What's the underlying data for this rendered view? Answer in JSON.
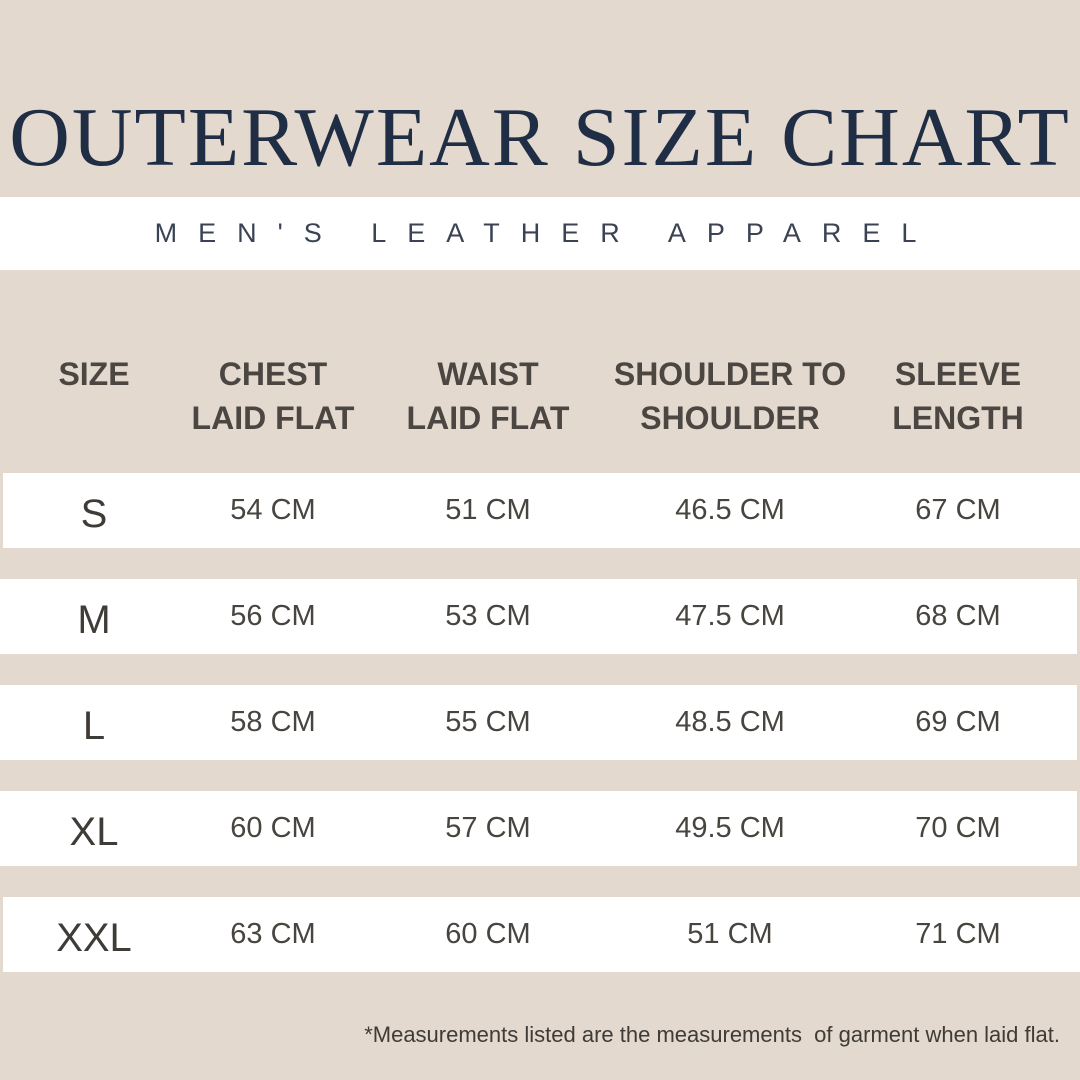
{
  "title": "OUTERWEAR SIZE CHART",
  "subtitle": "MEN'S LEATHER APPAREL",
  "headers": [
    [
      "SIZE",
      ""
    ],
    [
      "CHEST",
      "LAID FLAT"
    ],
    [
      "WAIST",
      "LAID FLAT"
    ],
    [
      "SHOULDER TO",
      "SHOULDER"
    ],
    [
      "SLEEVE",
      "LENGTH"
    ]
  ],
  "rows": [
    [
      "S",
      "54 CM",
      "51 CM",
      "46.5 CM",
      "67 CM"
    ],
    [
      "M",
      "56 CM",
      "53 CM",
      "47.5 CM",
      "68 CM"
    ],
    [
      "L",
      "58 CM",
      "55 CM",
      "48.5 CM",
      "69 CM"
    ],
    [
      "XL",
      "60 CM",
      "57 CM",
      "49.5 CM",
      "70 CM"
    ],
    [
      "XXL",
      "63 CM",
      "60 CM",
      "51 CM",
      "71 CM"
    ]
  ],
  "footnote": "*Measurements listed are the measurements  of garment when laid flat.",
  "colors": {
    "background": "#e3d9ce",
    "title": "#1f2d45",
    "text": "#48443f",
    "row": "#ffffff"
  }
}
